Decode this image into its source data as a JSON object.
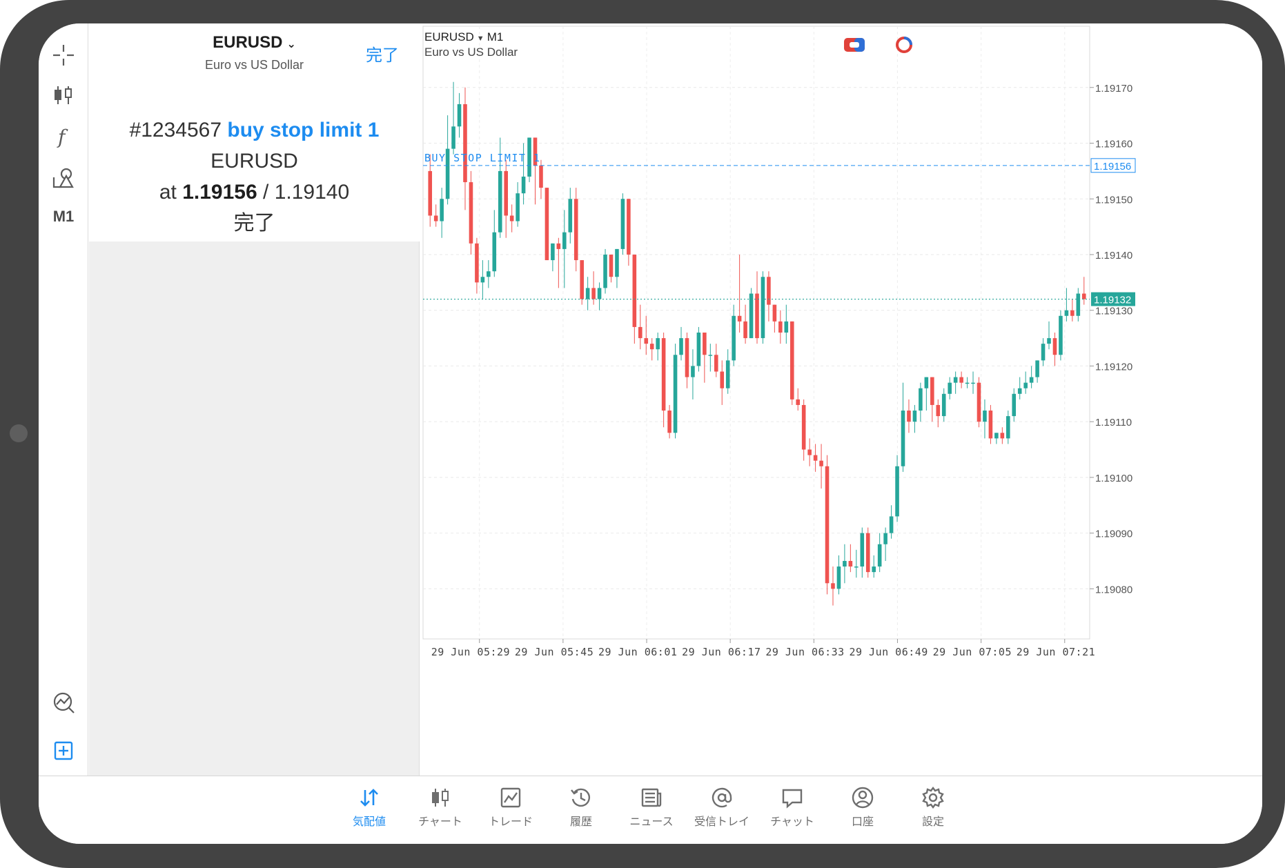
{
  "order_panel": {
    "symbol": "EURUSD",
    "symbol_desc": "Euro vs US Dollar",
    "done_button": "完了",
    "ticket": "#1234567",
    "order_type": "buy stop limit 1",
    "order_symbol": "EURUSD",
    "at_label": "at",
    "price": "1.19156",
    "separator": "/",
    "limit_price": "1.19140",
    "status": "完了"
  },
  "left_toolbar": {
    "items": [
      "crosshair-icon",
      "chart-type-icon",
      "indicators-icon",
      "objects-icon",
      "timeframe"
    ],
    "timeframe_label": "M1"
  },
  "chart_header": {
    "symbol": "EURUSD",
    "timeframe": "M1",
    "description": "Euro vs US Dollar"
  },
  "chart_labels": {
    "order_line_label": "BUY STOP LIMIT 1",
    "order_line_price": "1.19156",
    "current_price": "1.19132"
  },
  "colors": {
    "bull": "#26a69a",
    "bear": "#ef5350",
    "order_line": "#1d8cf0",
    "accent": "#1d8cf0"
  },
  "chart_data": {
    "type": "candlestick",
    "y_ticks": [
      "1.19170",
      "1.19160",
      "1.19150",
      "1.19140",
      "1.19130",
      "1.19120",
      "1.19110",
      "1.19100",
      "1.19090",
      "1.19080"
    ],
    "y_tick_values": [
      1.1917,
      1.1916,
      1.1915,
      1.1914,
      1.1913,
      1.1912,
      1.1911,
      1.191,
      1.1909,
      1.1908
    ],
    "x_ticks": [
      "29 Jun 05:29",
      "29 Jun 05:45",
      "29 Jun 06:01",
      "29 Jun 06:17",
      "29 Jun 06:33",
      "29 Jun 06:49",
      "29 Jun 07:05",
      "29 Jun 07:21"
    ],
    "ylim": [
      1.19071,
      1.19181
    ],
    "order_level": 1.19156,
    "current_price": 1.19132,
    "ohlc": [
      [
        1.19155,
        1.19158,
        1.19145,
        1.19147
      ],
      [
        1.19147,
        1.19149,
        1.19145,
        1.19146
      ],
      [
        1.19146,
        1.19152,
        1.19143,
        1.1915
      ],
      [
        1.1915,
        1.19165,
        1.19149,
        1.19159
      ],
      [
        1.19159,
        1.19171,
        1.19158,
        1.19163
      ],
      [
        1.19163,
        1.19169,
        1.19161,
        1.19167
      ],
      [
        1.19167,
        1.1917,
        1.19148,
        1.19153
      ],
      [
        1.19153,
        1.19155,
        1.1914,
        1.19142
      ],
      [
        1.19142,
        1.19143,
        1.19133,
        1.19135
      ],
      [
        1.19135,
        1.19139,
        1.19132,
        1.19136
      ],
      [
        1.19136,
        1.19139,
        1.19134,
        1.19137
      ],
      [
        1.19137,
        1.19148,
        1.19136,
        1.19144
      ],
      [
        1.19144,
        1.19161,
        1.19143,
        1.19155
      ],
      [
        1.19155,
        1.19157,
        1.19143,
        1.19147
      ],
      [
        1.19147,
        1.19149,
        1.19144,
        1.19146
      ],
      [
        1.19146,
        1.19153,
        1.19145,
        1.19151
      ],
      [
        1.19151,
        1.1916,
        1.19149,
        1.19154
      ],
      [
        1.19154,
        1.19161,
        1.19153,
        1.19161
      ],
      [
        1.19161,
        1.19161,
        1.19149,
        1.19156
      ],
      [
        1.19156,
        1.19157,
        1.1915,
        1.19152
      ],
      [
        1.19152,
        1.19152,
        1.19139,
        1.19139
      ],
      [
        1.19139,
        1.19142,
        1.19137,
        1.19142
      ],
      [
        1.19142,
        1.19143,
        1.19134,
        1.19141
      ],
      [
        1.19141,
        1.19148,
        1.19134,
        1.19144
      ],
      [
        1.19144,
        1.19152,
        1.19142,
        1.1915
      ],
      [
        1.1915,
        1.19152,
        1.19137,
        1.19139
      ],
      [
        1.19139,
        1.19139,
        1.19131,
        1.19132
      ],
      [
        1.19132,
        1.19136,
        1.1913,
        1.19134
      ],
      [
        1.19134,
        1.19137,
        1.19131,
        1.19132
      ],
      [
        1.19132,
        1.19135,
        1.1913,
        1.19134
      ],
      [
        1.19134,
        1.19141,
        1.19133,
        1.1914
      ],
      [
        1.1914,
        1.1914,
        1.19135,
        1.19136
      ],
      [
        1.19136,
        1.19141,
        1.19134,
        1.19141
      ],
      [
        1.19141,
        1.19151,
        1.1914,
        1.1915
      ],
      [
        1.1915,
        1.1915,
        1.19138,
        1.1914
      ],
      [
        1.1914,
        1.1914,
        1.19124,
        1.19127
      ],
      [
        1.19127,
        1.19131,
        1.19123,
        1.19125
      ],
      [
        1.19125,
        1.19129,
        1.19122,
        1.19124
      ],
      [
        1.19124,
        1.19125,
        1.19121,
        1.19123
      ],
      [
        1.19123,
        1.19126,
        1.19121,
        1.19125
      ],
      [
        1.19125,
        1.19126,
        1.19109,
        1.19112
      ],
      [
        1.19112,
        1.19113,
        1.19107,
        1.19108
      ],
      [
        1.19108,
        1.19124,
        1.19107,
        1.19122
      ],
      [
        1.19122,
        1.19127,
        1.19121,
        1.19125
      ],
      [
        1.19125,
        1.19126,
        1.19116,
        1.19118
      ],
      [
        1.19118,
        1.19123,
        1.19114,
        1.1912
      ],
      [
        1.1912,
        1.19127,
        1.19119,
        1.19126
      ],
      [
        1.19126,
        1.19126,
        1.19117,
        1.19122
      ],
      [
        1.19122,
        1.19124,
        1.19119,
        1.19122
      ],
      [
        1.19122,
        1.19124,
        1.19118,
        1.19119
      ],
      [
        1.19119,
        1.19121,
        1.19113,
        1.19116
      ],
      [
        1.19116,
        1.19123,
        1.19115,
        1.19121
      ],
      [
        1.19121,
        1.19131,
        1.1912,
        1.19129
      ],
      [
        1.19129,
        1.1914,
        1.19126,
        1.19128
      ],
      [
        1.19128,
        1.19131,
        1.19124,
        1.19125
      ],
      [
        1.19125,
        1.19134,
        1.19125,
        1.19133
      ],
      [
        1.19133,
        1.19137,
        1.19124,
        1.19125
      ],
      [
        1.19125,
        1.19137,
        1.19124,
        1.19136
      ],
      [
        1.19136,
        1.19137,
        1.19128,
        1.19131
      ],
      [
        1.19131,
        1.19131,
        1.19126,
        1.19128
      ],
      [
        1.19128,
        1.1913,
        1.19124,
        1.19126
      ],
      [
        1.19126,
        1.19131,
        1.19124,
        1.19128
      ],
      [
        1.19128,
        1.19128,
        1.19113,
        1.19114
      ],
      [
        1.19114,
        1.19116,
        1.19112,
        1.19113
      ],
      [
        1.19113,
        1.19114,
        1.19103,
        1.19105
      ],
      [
        1.19105,
        1.19107,
        1.19102,
        1.19104
      ],
      [
        1.19104,
        1.19106,
        1.19101,
        1.19103
      ],
      [
        1.19103,
        1.19106,
        1.19098,
        1.19102
      ],
      [
        1.19102,
        1.19104,
        1.19079,
        1.19081
      ],
      [
        1.19081,
        1.19084,
        1.19077,
        1.1908
      ],
      [
        1.1908,
        1.19086,
        1.19079,
        1.19084
      ],
      [
        1.19084,
        1.19088,
        1.19081,
        1.19085
      ],
      [
        1.19085,
        1.19088,
        1.19083,
        1.19084
      ],
      [
        1.19084,
        1.19087,
        1.19082,
        1.19084
      ],
      [
        1.19084,
        1.19091,
        1.19082,
        1.1909
      ],
      [
        1.1909,
        1.19091,
        1.19082,
        1.19083
      ],
      [
        1.19083,
        1.19086,
        1.19082,
        1.19084
      ],
      [
        1.19084,
        1.1909,
        1.19083,
        1.19088
      ],
      [
        1.19088,
        1.19091,
        1.19085,
        1.1909
      ],
      [
        1.1909,
        1.19095,
        1.19089,
        1.19093
      ],
      [
        1.19093,
        1.19104,
        1.19092,
        1.19102
      ],
      [
        1.19102,
        1.19117,
        1.19101,
        1.19112
      ],
      [
        1.19112,
        1.19114,
        1.19108,
        1.1911
      ],
      [
        1.1911,
        1.19113,
        1.19108,
        1.19112
      ],
      [
        1.19112,
        1.19117,
        1.1911,
        1.19116
      ],
      [
        1.19116,
        1.19118,
        1.19112,
        1.19118
      ],
      [
        1.19118,
        1.19118,
        1.1911,
        1.19113
      ],
      [
        1.19113,
        1.19114,
        1.19109,
        1.19111
      ],
      [
        1.19111,
        1.19116,
        1.1911,
        1.19115
      ],
      [
        1.19115,
        1.19118,
        1.19114,
        1.19117
      ],
      [
        1.19117,
        1.19119,
        1.19115,
        1.19118
      ],
      [
        1.19118,
        1.19119,
        1.19116,
        1.19117
      ],
      [
        1.19117,
        1.19118,
        1.19116,
        1.19117
      ],
      [
        1.19117,
        1.19119,
        1.19115,
        1.19117
      ],
      [
        1.19117,
        1.19118,
        1.19109,
        1.1911
      ],
      [
        1.1911,
        1.19114,
        1.19107,
        1.19112
      ],
      [
        1.19112,
        1.19113,
        1.19106,
        1.19107
      ],
      [
        1.19107,
        1.19108,
        1.19106,
        1.19108
      ],
      [
        1.19108,
        1.19109,
        1.19106,
        1.19107
      ],
      [
        1.19107,
        1.19112,
        1.19106,
        1.19111
      ],
      [
        1.19111,
        1.19116,
        1.1911,
        1.19115
      ],
      [
        1.19115,
        1.19118,
        1.19114,
        1.19116
      ],
      [
        1.19116,
        1.19119,
        1.19115,
        1.19117
      ],
      [
        1.19117,
        1.1912,
        1.19116,
        1.19118
      ],
      [
        1.19118,
        1.19121,
        1.19117,
        1.19121
      ],
      [
        1.19121,
        1.19125,
        1.1912,
        1.19124
      ],
      [
        1.19124,
        1.19128,
        1.19123,
        1.19125
      ],
      [
        1.19125,
        1.19126,
        1.1912,
        1.19122
      ],
      [
        1.19122,
        1.1913,
        1.19121,
        1.19129
      ],
      [
        1.19129,
        1.19134,
        1.19128,
        1.1913
      ],
      [
        1.1913,
        1.19132,
        1.19128,
        1.19129
      ],
      [
        1.19129,
        1.19134,
        1.19128,
        1.19133
      ],
      [
        1.19133,
        1.19136,
        1.19131,
        1.19132
      ]
    ]
  },
  "bottom_nav": {
    "items": [
      {
        "label": "気配値",
        "icon": "quotes-icon",
        "active": true
      },
      {
        "label": "チャート",
        "icon": "chart-icon",
        "active": false
      },
      {
        "label": "トレード",
        "icon": "trade-icon",
        "active": false
      },
      {
        "label": "履歴",
        "icon": "history-icon",
        "active": false
      },
      {
        "label": "ニュース",
        "icon": "news-icon",
        "active": false
      },
      {
        "label": "受信トレイ",
        "icon": "mail-icon",
        "active": false
      },
      {
        "label": "チャット",
        "icon": "chat-icon",
        "active": false
      },
      {
        "label": "口座",
        "icon": "account-icon",
        "active": false
      },
      {
        "label": "設定",
        "icon": "settings-icon",
        "active": false
      }
    ]
  }
}
